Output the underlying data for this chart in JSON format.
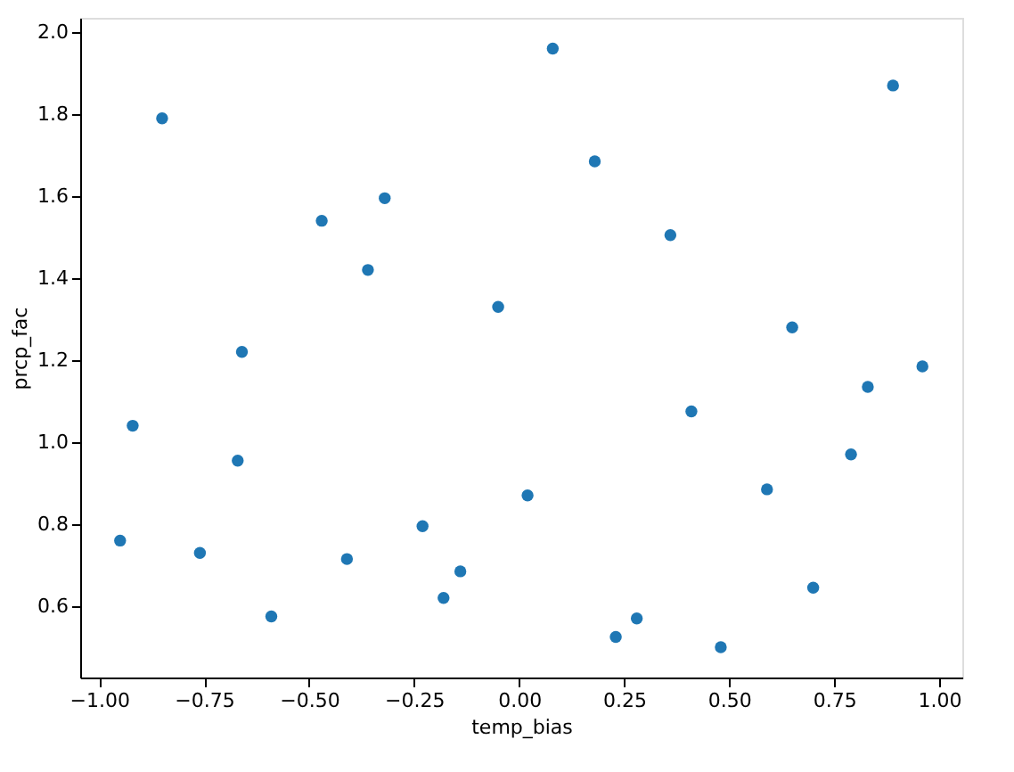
{
  "chart_data": {
    "type": "scatter",
    "xlabel": "temp_bias",
    "ylabel": "prcp_fac",
    "x": [
      -0.95,
      -0.92,
      -0.85,
      -0.76,
      -0.67,
      -0.66,
      -0.59,
      -0.47,
      -0.41,
      -0.36,
      -0.32,
      -0.23,
      -0.18,
      -0.14,
      -0.05,
      0.02,
      0.08,
      0.18,
      0.23,
      0.28,
      0.36,
      0.41,
      0.48,
      0.59,
      0.65,
      0.7,
      0.79,
      0.83,
      0.89,
      0.96
    ],
    "series": [
      {
        "color": "#1f77b4",
        "values": [
          0.76,
          1.04,
          1.79,
          0.73,
          0.955,
          1.22,
          0.575,
          1.54,
          0.715,
          1.42,
          1.595,
          0.795,
          0.62,
          0.685,
          1.33,
          0.87,
          1.96,
          1.685,
          0.525,
          0.57,
          1.505,
          1.075,
          0.5,
          0.885,
          1.28,
          0.645,
          0.97,
          1.135,
          1.87,
          1.185
        ]
      }
    ],
    "xlim": [
      -1.045,
      1.055
    ],
    "ylim": [
      0.426,
      2.035
    ],
    "xticks": [
      {
        "value": -1.0,
        "label": "−1.00"
      },
      {
        "value": -0.75,
        "label": "−0.75"
      },
      {
        "value": -0.5,
        "label": "−0.50"
      },
      {
        "value": -0.25,
        "label": "−0.25"
      },
      {
        "value": 0,
        "label": "0.00"
      },
      {
        "value": 0.25,
        "label": "0.25"
      },
      {
        "value": 0.5,
        "label": "0.50"
      },
      {
        "value": 0.75,
        "label": "0.75"
      },
      {
        "value": 1.0,
        "label": "1.00"
      }
    ],
    "yticks": [
      {
        "value": 0.6,
        "label": "0.6"
      },
      {
        "value": 0.8,
        "label": "0.8"
      },
      {
        "value": 1.0,
        "label": "1.0"
      },
      {
        "value": 1.2,
        "label": "1.2"
      },
      {
        "value": 1.4,
        "label": "1.4"
      },
      {
        "value": 1.6,
        "label": "1.6"
      },
      {
        "value": 1.8,
        "label": "1.8"
      },
      {
        "value": 2.0,
        "label": "2.0"
      }
    ],
    "marker": "circle",
    "grid": false
  }
}
